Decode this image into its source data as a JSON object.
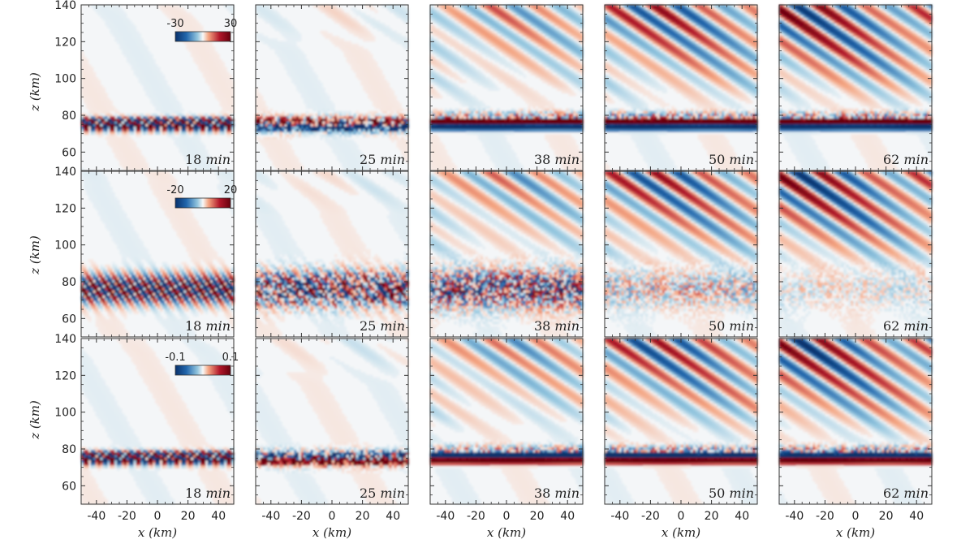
{
  "chart_data": {
    "type": "heatmap",
    "title": "",
    "xlabel": "x (km)",
    "ylabel": "z (km)",
    "xlim": [
      -50,
      50
    ],
    "ylim": [
      50,
      140
    ],
    "xticks": [
      -40,
      -20,
      0,
      20,
      40
    ],
    "xtick_labels": [
      "-40",
      "-20",
      "0",
      "20",
      "40"
    ],
    "yticks": [
      60,
      80,
      100,
      120,
      140
    ],
    "ytick_labels": [
      "60",
      "80",
      "100",
      "120",
      "140"
    ],
    "times": [
      "18 min",
      "25 min",
      "38 min",
      "50 min",
      "62 min"
    ],
    "time_label_parts": [
      {
        "num": "18",
        "unit": "min"
      },
      {
        "num": "25",
        "unit": "min"
      },
      {
        "num": "38",
        "unit": "min"
      },
      {
        "num": "50",
        "unit": "min"
      },
      {
        "num": "62",
        "unit": "min"
      }
    ],
    "colormap": {
      "name": "diverging blue-white-red",
      "low": "#08306b",
      "mid": "#f7f7f7",
      "high": "#67000d"
    },
    "rows": [
      {
        "colorbar_min": "-30",
        "colorbar_max": "30",
        "wave_layer_center_km": 75
      },
      {
        "colorbar_min": "-20",
        "colorbar_max": "20",
        "wave_layer_center_km": 76
      },
      {
        "colorbar_min": "-0.1",
        "colorbar_max": "0.1",
        "wave_layer_center_km": 75
      }
    ]
  }
}
